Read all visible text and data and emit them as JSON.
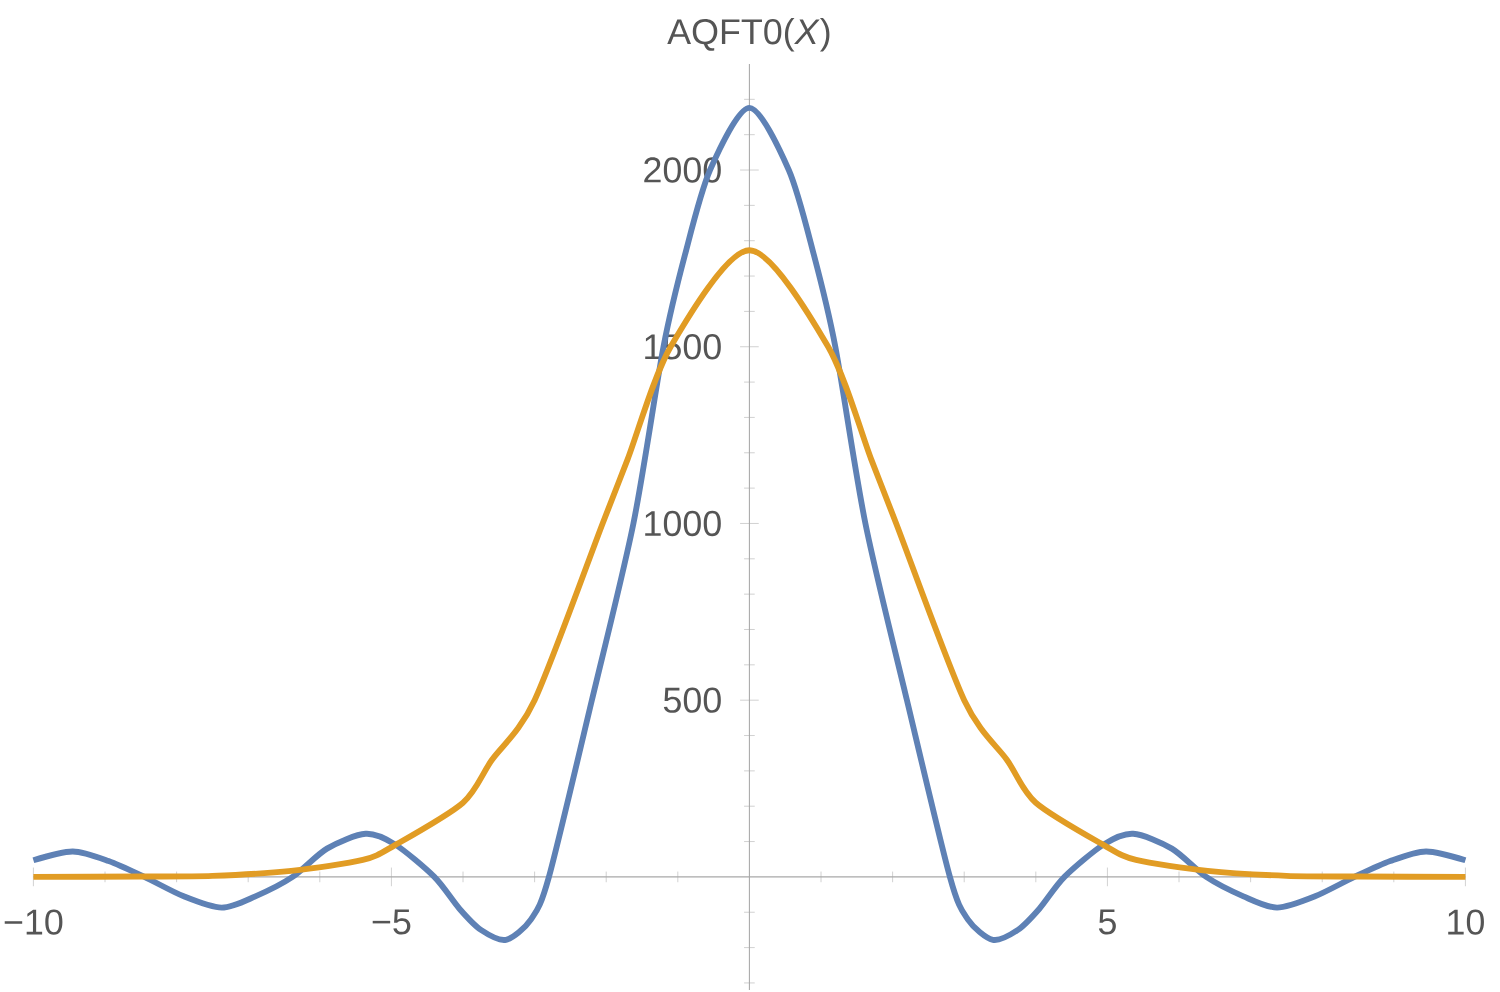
{
  "chart_data": {
    "type": "line",
    "ylabel": "AQFT0(*X*)",
    "xlim": [
      -10,
      10
    ],
    "ylim": [
      -320,
      2300
    ],
    "xticks": [
      {
        "value": -10,
        "label": "−10"
      },
      {
        "value": -9,
        "label": null
      },
      {
        "value": -8,
        "label": null
      },
      {
        "value": -7,
        "label": null
      },
      {
        "value": -6,
        "label": null
      },
      {
        "value": -5,
        "label": "−5"
      },
      {
        "value": -4,
        "label": null
      },
      {
        "value": -3,
        "label": null
      },
      {
        "value": -2,
        "label": null
      },
      {
        "value": -1,
        "label": null
      },
      {
        "value": 1,
        "label": null
      },
      {
        "value": 2,
        "label": null
      },
      {
        "value": 3,
        "label": null
      },
      {
        "value": 4,
        "label": null
      },
      {
        "value": 5,
        "label": "5"
      },
      {
        "value": 6,
        "label": null
      },
      {
        "value": 7,
        "label": null
      },
      {
        "value": 8,
        "label": null
      },
      {
        "value": 9,
        "label": null
      },
      {
        "value": 10,
        "label": "10"
      }
    ],
    "yticks": [
      {
        "value": -300,
        "label": null
      },
      {
        "value": -200,
        "label": null
      },
      {
        "value": -100,
        "label": null
      },
      {
        "value": 100,
        "label": null
      },
      {
        "value": 200,
        "label": null
      },
      {
        "value": 300,
        "label": null
      },
      {
        "value": 400,
        "label": null
      },
      500,
      {
        "value": 600,
        "label": null
      },
      {
        "value": 700,
        "label": null
      },
      {
        "value": 800,
        "label": null
      },
      {
        "value": 900,
        "label": null
      },
      1000,
      {
        "value": 1100,
        "label": null
      },
      {
        "value": 1200,
        "label": null
      },
      {
        "value": 1300,
        "label": null
      },
      {
        "value": 1400,
        "label": null
      },
      1500,
      {
        "value": 1600,
        "label": null
      },
      {
        "value": 1700,
        "label": null
      },
      {
        "value": 1800,
        "label": null
      },
      {
        "value": 1900,
        "label": null
      },
      2000,
      {
        "value": 2100,
        "label": null
      },
      {
        "value": 2200,
        "label": null
      }
    ],
    "series": [
      {
        "color": "#5e81b5",
        "x": [
          -10,
          -9.45,
          -8.95,
          -8.45,
          -7.9,
          -7.37,
          -6.9,
          -6.38,
          -5.9,
          -5.36,
          -4.95,
          -4.4,
          -4.05,
          -3.75,
          -3.4,
          -3.05,
          -2.8,
          -2.2,
          -1.62,
          -1.2,
          -0.9,
          -0.55,
          0,
          0.55,
          0.9,
          1.2,
          1.62,
          2.2,
          2.8,
          3.05,
          3.4,
          3.75,
          4.05,
          4.4,
          4.95,
          5.36,
          5.9,
          6.38,
          6.9,
          7.37,
          7.9,
          8.45,
          8.95,
          9.45,
          10
        ],
        "values": [
          47,
          72,
          45,
          0,
          -55,
          -87,
          -55,
          0,
          80,
          122,
          92,
          0,
          -90,
          -150,
          -178,
          -120,
          0,
          500,
          1000,
          1500,
          1760,
          2000,
          2176,
          2000,
          1760,
          1500,
          1000,
          500,
          0,
          -120,
          -178,
          -150,
          -90,
          0,
          92,
          122,
          80,
          0,
          -55,
          -87,
          -55,
          0,
          45,
          72,
          47
        ]
      },
      {
        "color": "#e19c24",
        "x": [
          -10,
          -8.5,
          -7.5,
          -6.4,
          -5.4,
          -4.95,
          -4,
          -3.6,
          -3,
          -2.05,
          -1.7,
          -1.1,
          0,
          1.1,
          1.7,
          2.05,
          3,
          3.6,
          4,
          4.95,
          5.4,
          6.4,
          7.5,
          8.5,
          10
        ],
        "values": [
          0,
          1,
          3,
          17,
          48,
          90,
          210,
          330,
          500,
          1000,
          1182,
          1500,
          1773,
          1500,
          1182,
          1000,
          500,
          330,
          210,
          90,
          48,
          17,
          3,
          1,
          0
        ]
      }
    ]
  }
}
